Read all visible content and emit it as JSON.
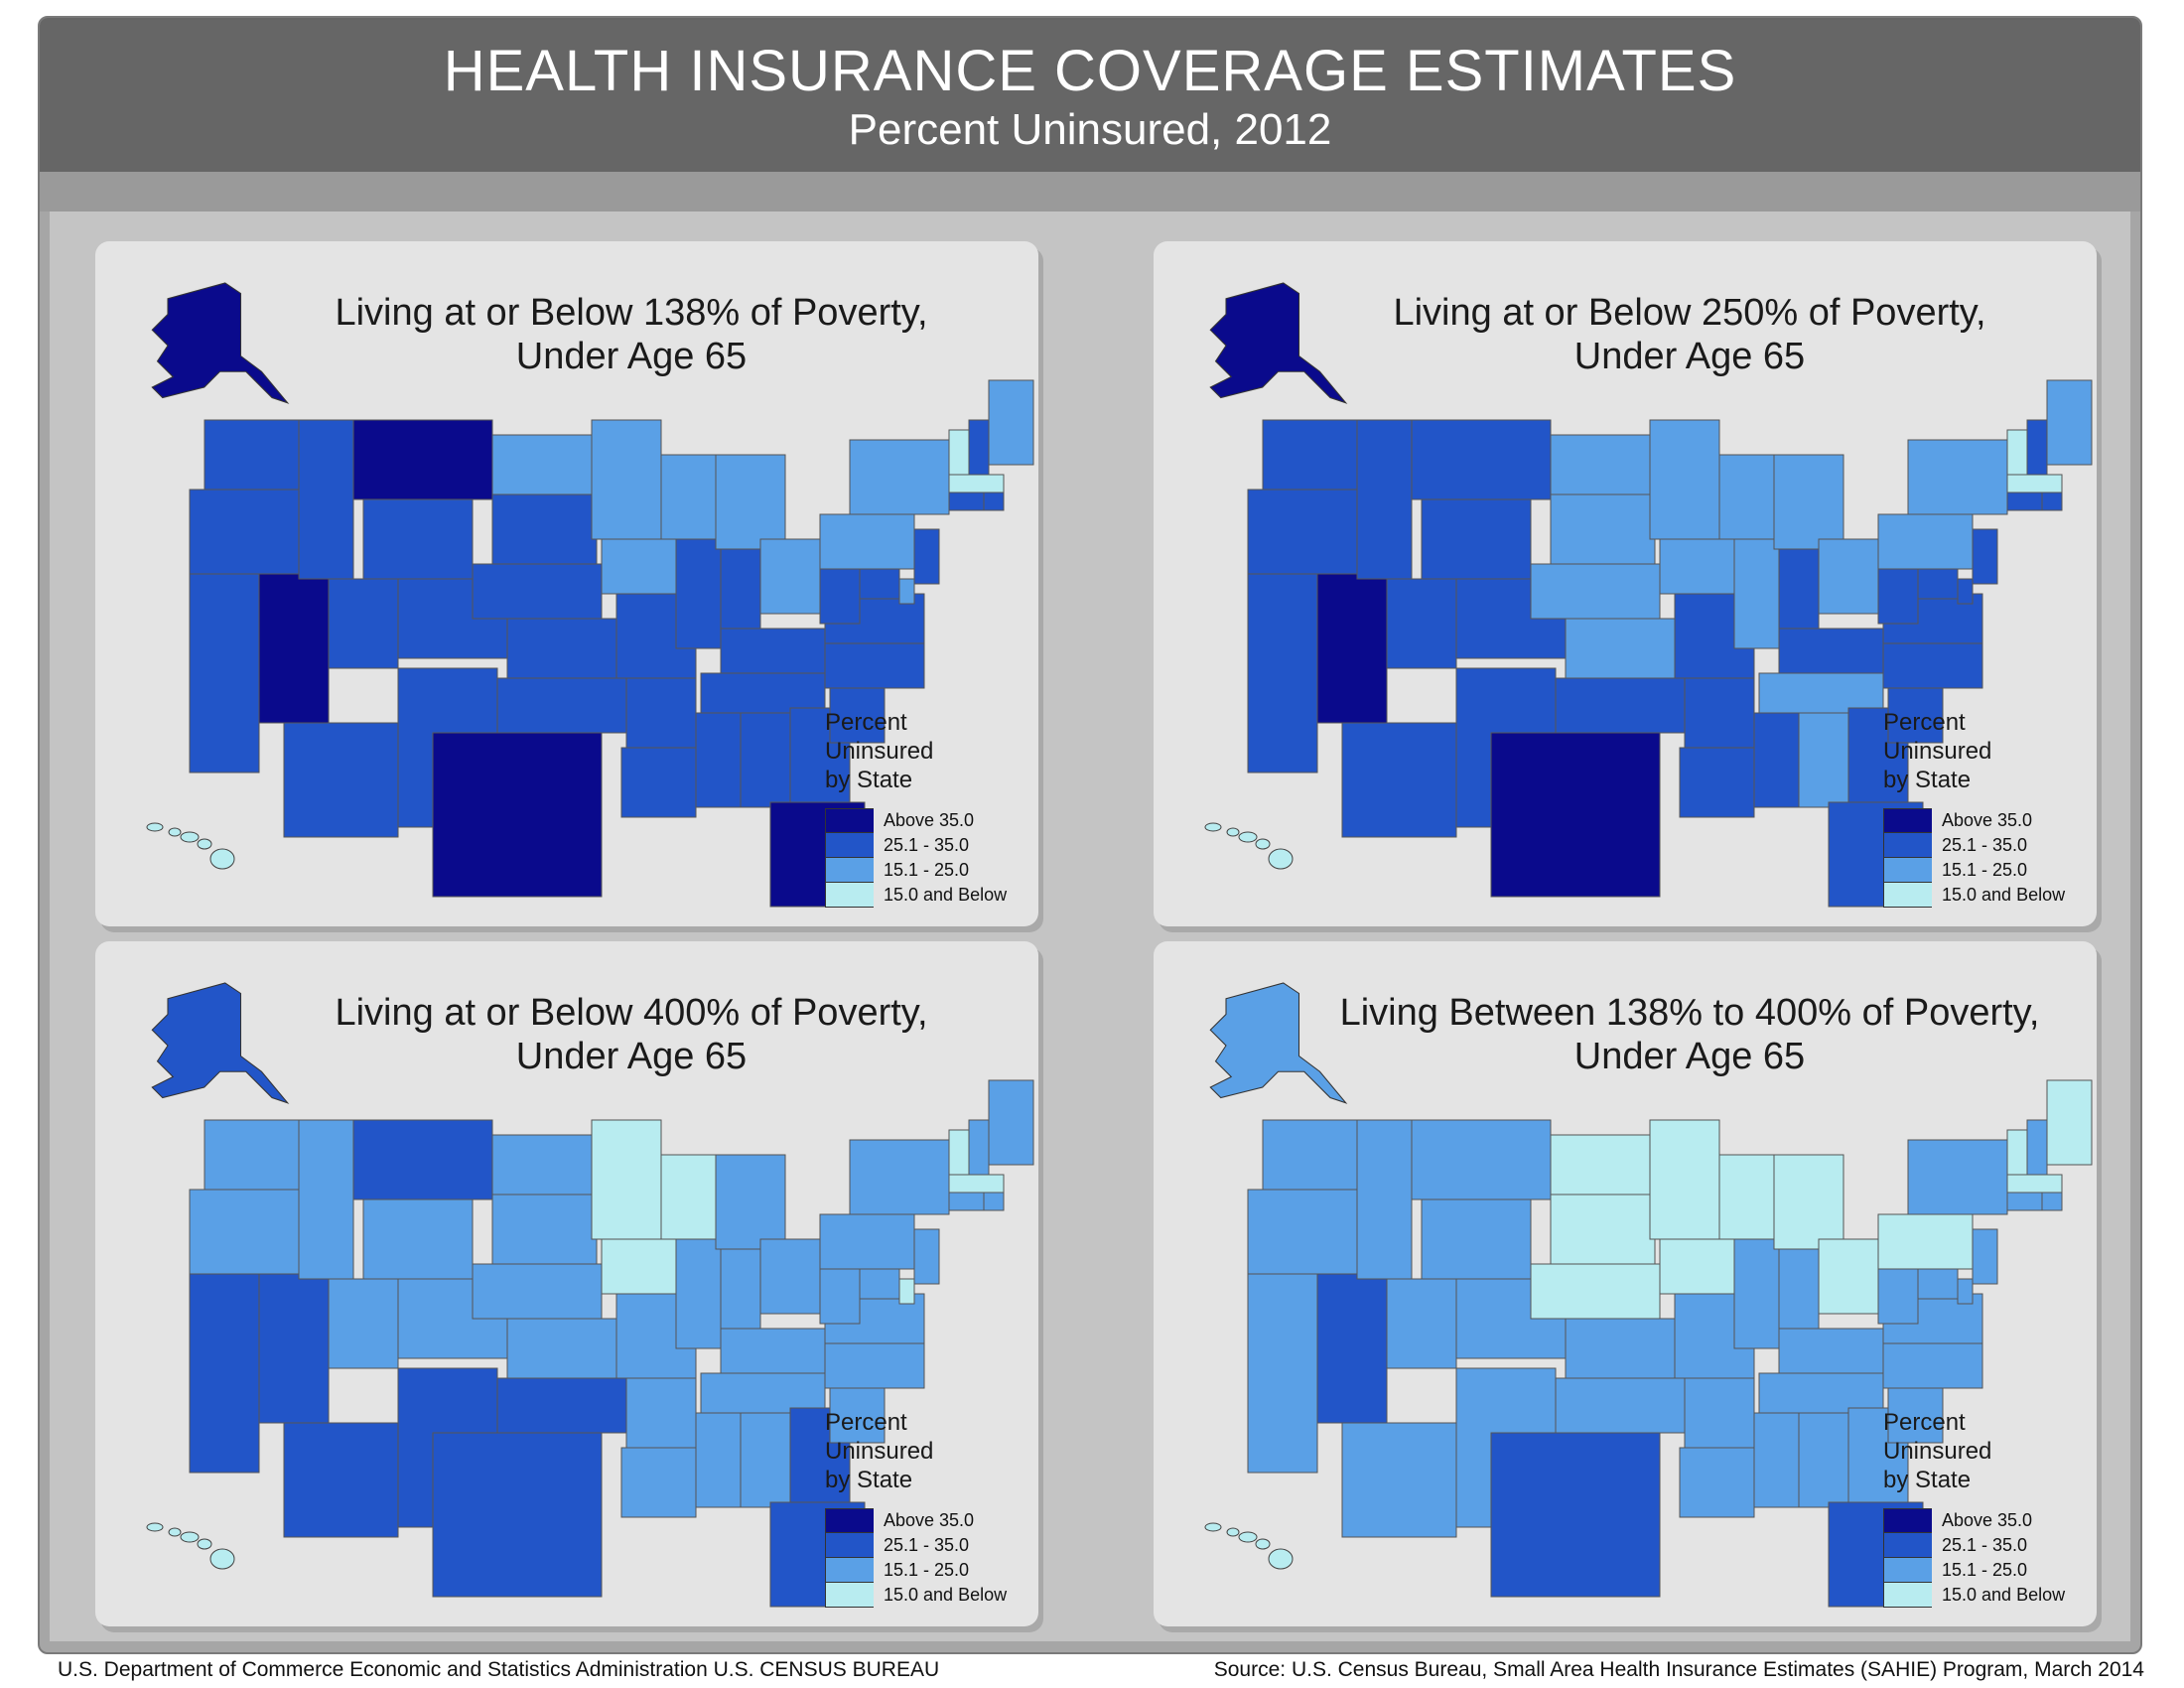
{
  "header": {
    "title": "HEALTH INSURANCE COVERAGE ESTIMATES",
    "subtitle": "Percent Uninsured, 2012"
  },
  "colors": {
    "above_35": "#0a0a8c",
    "r25_35": "#2255c8",
    "r15_25": "#5aa0e6",
    "below_15": "#b8ecf0",
    "panel_bg": "#e4e4e4",
    "header_bg": "#666666"
  },
  "legend": {
    "title_lines": [
      "Percent",
      "Uninsured",
      "by State"
    ],
    "classes": [
      {
        "label": "Above 35.0",
        "color": "#0a0a8c"
      },
      {
        "label": "25.1 - 35.0",
        "color": "#2255c8"
      },
      {
        "label": "15.1 - 25.0",
        "color": "#5aa0e6"
      },
      {
        "label": "15.0 and Below",
        "color": "#b8ecf0"
      }
    ]
  },
  "panels": [
    {
      "title_line1": "Living at or Below 138% of Poverty,",
      "title_line2": "Under Age 65",
      "alaska_class": "above_35",
      "hawaii_class": "below_15",
      "base_class": "r25_35",
      "states": {
        "TX": "above_35",
        "NV": "above_35",
        "MT": "above_35",
        "FL": "above_35",
        "ND": "r15_25",
        "MN": "r15_25",
        "WI": "r15_25",
        "IA": "r15_25",
        "MI": "r15_25",
        "OH": "r15_25",
        "PA": "r15_25",
        "NY": "r15_25",
        "ME": "r15_25",
        "VT": "below_15",
        "MA": "below_15",
        "DE": "r15_25"
      }
    },
    {
      "title_line1": "Living at or Below 250% of Poverty,",
      "title_line2": "Under Age 65",
      "alaska_class": "above_35",
      "hawaii_class": "below_15",
      "base_class": "r25_35",
      "states": {
        "TX": "above_35",
        "NV": "above_35",
        "ND": "r15_25",
        "SD": "r15_25",
        "NE": "r15_25",
        "KS": "r15_25",
        "MN": "r15_25",
        "IA": "r15_25",
        "WI": "r15_25",
        "IL": "r15_25",
        "MI": "r15_25",
        "OH": "r15_25",
        "PA": "r15_25",
        "NY": "r15_25",
        "ME": "r15_25",
        "TN": "r15_25",
        "AL": "r15_25",
        "VT": "below_15",
        "MA": "below_15"
      }
    },
    {
      "title_line1": "Living at or Below 400% of Poverty,",
      "title_line2": "Under Age 65",
      "alaska_class": "r25_35",
      "hawaii_class": "below_15",
      "base_class": "r15_25",
      "states": {
        "CA": "r25_35",
        "NV": "r25_35",
        "AZ": "r25_35",
        "NM": "r25_35",
        "TX": "r25_35",
        "OK": "r25_35",
        "MT": "r25_35",
        "GA": "r25_35",
        "FL": "r25_35",
        "MN": "below_15",
        "WI": "below_15",
        "IA": "below_15",
        "VT": "below_15",
        "MA": "below_15",
        "DE": "below_15"
      }
    },
    {
      "title_line1": "Living Between 138% to 400% of Poverty,",
      "title_line2": "Under Age 65",
      "alaska_class": "r15_25",
      "hawaii_class": "below_15",
      "base_class": "r15_25",
      "states": {
        "NV": "r25_35",
        "TX": "r25_35",
        "FL": "r25_35",
        "ND": "below_15",
        "SD": "below_15",
        "NE": "below_15",
        "MN": "below_15",
        "IA": "below_15",
        "WI": "below_15",
        "MI": "below_15",
        "OH": "below_15",
        "PA": "below_15",
        "ME": "below_15",
        "VT": "below_15",
        "MA": "below_15"
      }
    }
  ],
  "footer": {
    "left": "U.S. Department of Commerce  Economic and Statistics Administration  U.S. CENSUS BUREAU",
    "right": "Source: U.S. Census Bureau, Small Area Health Insurance Estimates (SAHIE) Program, March 2014"
  }
}
